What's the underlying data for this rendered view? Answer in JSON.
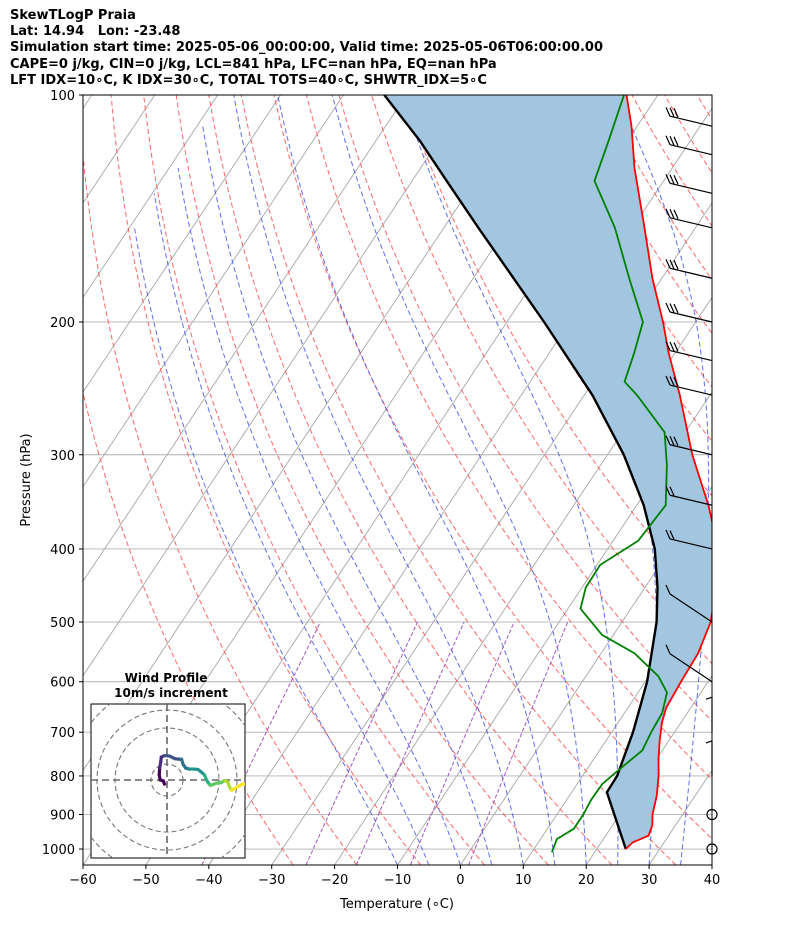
{
  "header": {
    "line1": "SkewTLogP Praia",
    "line2": "Lat: 14.94   Lon: -23.48",
    "line3": "Simulation start time: 2025-05-06_00:00:00, Valid time: 2025-05-06T06:00:00.00",
    "line4": "CAPE=0 j/kg, CIN=0 j/kg, LCL=841 hPa, LFC=nan hPa, EQ=nan hPa",
    "line5": "LFT IDX=10∘C, K IDX=30∘C, TOTAL TOTS=40∘C, SHWTR_IDX=5∘C"
  },
  "chart_data": {
    "type": "line",
    "title": "",
    "xlabel": "Temperature (∘C)",
    "ylabel": "Pressure (hPa)",
    "xlim": [
      -60,
      40
    ],
    "ylim": [
      1050,
      100
    ],
    "y_scale": "log",
    "skew": true,
    "grid": true,
    "x_ticks": [
      "−60",
      "−50",
      "−40",
      "−30",
      "−20",
      "−10",
      "0",
      "10",
      "20",
      "30",
      "40"
    ],
    "x_tick_values": [
      -60,
      -50,
      -40,
      -30,
      -20,
      -10,
      0,
      10,
      20,
      30,
      40
    ],
    "y_ticks": [
      "100",
      "200",
      "300",
      "400",
      "500",
      "600",
      "700",
      "800",
      "900",
      "1000"
    ],
    "y_tick_values": [
      100,
      200,
      300,
      400,
      500,
      600,
      700,
      800,
      900,
      1000
    ],
    "series": [
      {
        "role": "temperature",
        "color": "#ff0000",
        "points": [
          [
            1000,
            24.6
          ],
          [
            980,
            25.0
          ],
          [
            960,
            26.8
          ],
          [
            930,
            26.3
          ],
          [
            900,
            25.2
          ],
          [
            850,
            23.9
          ],
          [
            800,
            22.1
          ],
          [
            760,
            20.3
          ],
          [
            720,
            18.6
          ],
          [
            680,
            17.0
          ],
          [
            650,
            16.1
          ],
          [
            600,
            15.7
          ],
          [
            550,
            15.4
          ],
          [
            500,
            14.1
          ],
          [
            450,
            11.3
          ],
          [
            400,
            7.6
          ],
          [
            350,
            1.4
          ],
          [
            300,
            -6.5
          ],
          [
            250,
            -14.8
          ],
          [
            220,
            -21.0
          ],
          [
            200,
            -25.2
          ],
          [
            175,
            -31.5
          ],
          [
            150,
            -38.1
          ],
          [
            125,
            -46.0
          ],
          [
            110,
            -50.9
          ],
          [
            100,
            -55.0
          ]
        ]
      },
      {
        "role": "dewpoint",
        "color": "#008000",
        "points": [
          [
            1010,
            13.2
          ],
          [
            970,
            12.6
          ],
          [
            940,
            14.2
          ],
          [
            900,
            14.2
          ],
          [
            860,
            13.9
          ],
          [
            820,
            14.0
          ],
          [
            780,
            15.3
          ],
          [
            740,
            16.8
          ],
          [
            700,
            16.3
          ],
          [
            660,
            16.0
          ],
          [
            620,
            14.6
          ],
          [
            590,
            11.5
          ],
          [
            550,
            5.3
          ],
          [
            520,
            -1.8
          ],
          [
            480,
            -8.0
          ],
          [
            450,
            -9.4
          ],
          [
            420,
            -9.5
          ],
          [
            390,
            -6.0
          ],
          [
            350,
            -5.4
          ],
          [
            310,
            -9.4
          ],
          [
            280,
            -13.3
          ],
          [
            250,
            -21.6
          ],
          [
            240,
            -25.0
          ],
          [
            220,
            -26.5
          ],
          [
            200,
            -28.4
          ],
          [
            175,
            -35.2
          ],
          [
            150,
            -42.8
          ],
          [
            130,
            -51.0
          ],
          [
            115,
            -53.0
          ],
          [
            100,
            -55.4
          ]
        ]
      },
      {
        "role": "parcel",
        "color": "#000000",
        "points": [
          [
            1000,
            24.6
          ],
          [
            841,
            15.6
          ],
          [
            800,
            15.5
          ],
          [
            700,
            13.4
          ],
          [
            600,
            10.3
          ],
          [
            500,
            5.5
          ],
          [
            450,
            2.0
          ],
          [
            400,
            -2.5
          ],
          [
            350,
            -8.9
          ],
          [
            300,
            -17.4
          ],
          [
            250,
            -28.7
          ],
          [
            200,
            -44.1
          ],
          [
            150,
            -64.5
          ],
          [
            130,
            -74.5
          ],
          [
            115,
            -83.0
          ],
          [
            100,
            -93.5
          ]
        ]
      }
    ],
    "wind_barbs_hpa": [
      1000,
      900,
      800,
      700,
      600,
      500,
      400,
      350,
      300,
      250,
      225,
      200,
      175,
      150,
      135,
      120,
      110
    ],
    "inset": {
      "title": "Wind Profile",
      "subtitle": "10m/s increment",
      "colormap": "viridis",
      "hodograph": [
        [
          -0.5,
          -0.8
        ],
        [
          -0.7,
          -0.2
        ],
        [
          -1.3,
          0.0
        ],
        [
          -1.5,
          1.0
        ],
        [
          -1.4,
          2.3
        ],
        [
          -1.2,
          3.5
        ],
        [
          -1.1,
          4.4
        ],
        [
          -0.5,
          4.7
        ],
        [
          0.5,
          4.6
        ],
        [
          1.5,
          4.1
        ],
        [
          2.3,
          4.0
        ],
        [
          2.8,
          4.0
        ],
        [
          3.1,
          3.0
        ],
        [
          3.6,
          2.3
        ],
        [
          4.3,
          2.1
        ],
        [
          5.3,
          2.1
        ],
        [
          6.0,
          2.0
        ],
        [
          6.5,
          1.6
        ],
        [
          7.2,
          1.0
        ],
        [
          7.6,
          0.0
        ],
        [
          7.9,
          -0.5
        ],
        [
          8.3,
          -1.0
        ],
        [
          8.8,
          -0.9
        ],
        [
          9.5,
          -0.6
        ],
        [
          10.4,
          -0.5
        ],
        [
          11.1,
          -0.1
        ],
        [
          11.7,
          -0.4
        ],
        [
          12.0,
          -1.3
        ],
        [
          12.4,
          -2.0
        ],
        [
          13.4,
          -1.4
        ],
        [
          14.5,
          -0.8
        ],
        [
          15.3,
          -0.8
        ]
      ]
    }
  }
}
